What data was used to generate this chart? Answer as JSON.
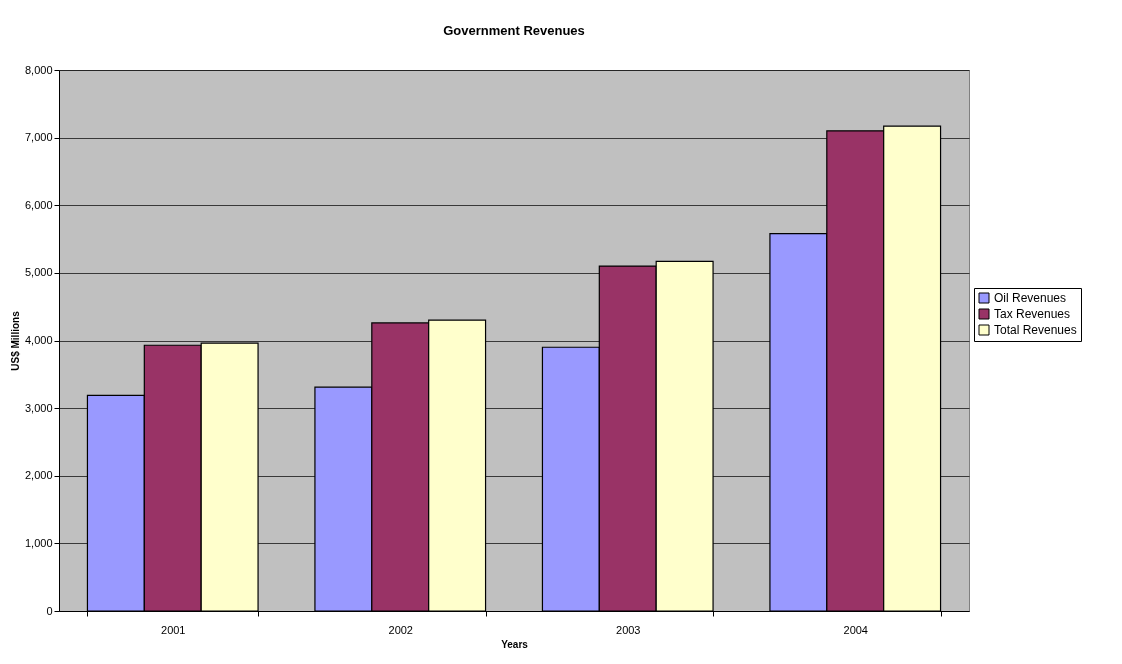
{
  "chart_data": {
    "type": "bar",
    "title": "Government Revenues",
    "xlabel": "Years",
    "ylabel": "US$ Millions",
    "categories": [
      "2001",
      "2002",
      "2003",
      "2004"
    ],
    "series": [
      {
        "name": "Oil Revenues",
        "color": "#9999ff",
        "values": [
          3190,
          3310,
          3900,
          5580
        ]
      },
      {
        "name": "Tax Revenues",
        "color": "#993366",
        "values": [
          3930,
          4260,
          5100,
          7100
        ]
      },
      {
        "name": "Total Revenues",
        "color": "#ffffcc",
        "values": [
          3960,
          4300,
          5170,
          7170
        ]
      }
    ],
    "ylim": [
      0,
      8000
    ],
    "yticks": [
      0,
      {
        "value": 1000,
        "label": "1,000"
      },
      {
        "value": 2000,
        "label": "2,000"
      },
      {
        "value": 3000,
        "label": "3,000"
      },
      {
        "value": 4000,
        "label": "4,000"
      },
      {
        "value": 5000,
        "label": "5,000"
      },
      {
        "value": 6000,
        "label": "6,000"
      },
      {
        "value": 7000,
        "label": "7,000"
      },
      {
        "value": 8000,
        "label": "8,000"
      }
    ],
    "grid": "y",
    "legend": "right"
  }
}
